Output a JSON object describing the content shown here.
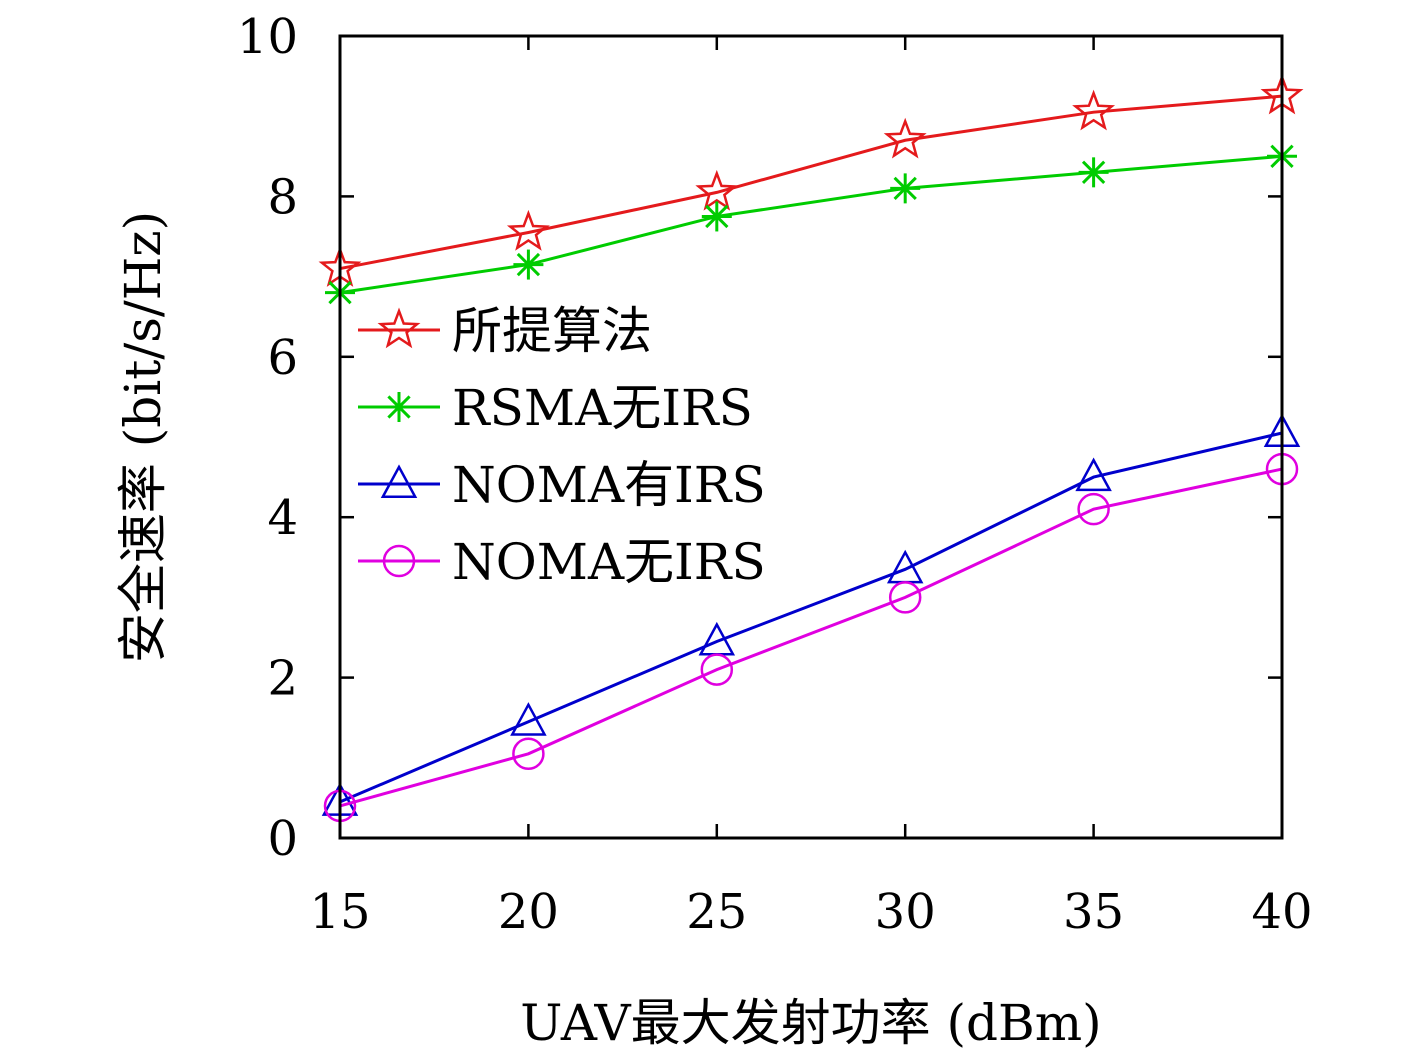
{
  "chart_data": {
    "type": "line",
    "xlabel": "UAV最大发射功率 (dBm)",
    "ylabel": "安全速率 (bit/s/Hz)",
    "x": [
      15,
      20,
      25,
      30,
      35,
      40
    ],
    "xlim": [
      15,
      40
    ],
    "ylim": [
      0,
      10
    ],
    "x_ticks": [
      "15",
      "20",
      "25",
      "30",
      "35",
      "40"
    ],
    "y_ticks": [
      "0",
      "2",
      "4",
      "6",
      "8",
      "10"
    ],
    "grid": false,
    "legend_position": "center-left",
    "series": [
      {
        "name": "所提算法",
        "color": "#e41a1c",
        "marker": "star",
        "values": [
          7.1,
          7.55,
          8.05,
          8.7,
          9.05,
          9.25
        ]
      },
      {
        "name": "RSMA无IRS",
        "color": "#00cc00",
        "marker": "asterisk",
        "values": [
          6.8,
          7.15,
          7.75,
          8.1,
          8.3,
          8.5
        ]
      },
      {
        "name": "NOMA有IRS",
        "color": "#0000cc",
        "marker": "triangle",
        "values": [
          0.45,
          1.45,
          2.45,
          3.35,
          4.5,
          5.05
        ]
      },
      {
        "name": "NOMA无IRS",
        "color": "#e000e0",
        "marker": "circle",
        "values": [
          0.4,
          1.05,
          2.1,
          3.0,
          4.1,
          4.6
        ]
      }
    ]
  }
}
